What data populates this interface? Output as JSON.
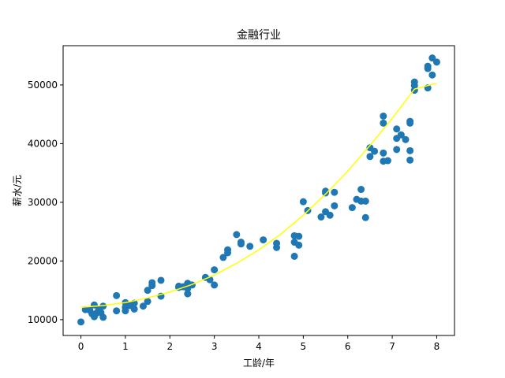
{
  "chart_data": {
    "type": "scatter",
    "title": "金融行业",
    "xlabel": "工龄/年",
    "ylabel": "薪水/元",
    "xlim": [
      -0.4,
      8.4
    ],
    "ylim": [
      7300,
      56700
    ],
    "x_ticks": [
      0,
      1,
      2,
      3,
      4,
      5,
      6,
      7,
      8
    ],
    "y_ticks": [
      10000,
      20000,
      30000,
      40000,
      50000
    ],
    "x_tick_labels": [
      "0",
      "1",
      "2",
      "3",
      "4",
      "5",
      "6",
      "7",
      "8"
    ],
    "y_tick_labels": [
      "10000",
      "20000",
      "30000",
      "40000",
      "50000"
    ],
    "grid": false,
    "scatter_color": "#1f77b4",
    "fit_color": "#ffff00",
    "points": [
      [
        0.0,
        9600
      ],
      [
        0.1,
        11700
      ],
      [
        0.2,
        11600
      ],
      [
        0.25,
        11000
      ],
      [
        0.3,
        12500
      ],
      [
        0.3,
        10500
      ],
      [
        0.35,
        11100
      ],
      [
        0.4,
        11700
      ],
      [
        0.45,
        11200
      ],
      [
        0.5,
        12300
      ],
      [
        0.5,
        10400
      ],
      [
        0.8,
        14100
      ],
      [
        0.8,
        11500
      ],
      [
        1.0,
        12900
      ],
      [
        1.0,
        12100
      ],
      [
        1.0,
        11500
      ],
      [
        1.1,
        12400
      ],
      [
        1.2,
        12800
      ],
      [
        1.2,
        11800
      ],
      [
        1.4,
        12300
      ],
      [
        1.5,
        15000
      ],
      [
        1.5,
        13100
      ],
      [
        1.6,
        16300
      ],
      [
        1.6,
        15800
      ],
      [
        1.8,
        16700
      ],
      [
        1.8,
        14000
      ],
      [
        2.2,
        15700
      ],
      [
        2.2,
        15500
      ],
      [
        2.3,
        15600
      ],
      [
        2.4,
        16200
      ],
      [
        2.4,
        15300
      ],
      [
        2.4,
        14400
      ],
      [
        2.5,
        15900
      ],
      [
        2.8,
        17200
      ],
      [
        2.9,
        16800
      ],
      [
        3.0,
        18500
      ],
      [
        3.0,
        15900
      ],
      [
        3.2,
        20600
      ],
      [
        3.3,
        21900
      ],
      [
        3.3,
        21400
      ],
      [
        3.5,
        24500
      ],
      [
        3.6,
        23200
      ],
      [
        3.6,
        22900
      ],
      [
        3.8,
        22500
      ],
      [
        4.1,
        23600
      ],
      [
        4.4,
        22300
      ],
      [
        4.4,
        23000
      ],
      [
        4.8,
        24300
      ],
      [
        4.8,
        23200
      ],
      [
        4.8,
        20800
      ],
      [
        4.9,
        24200
      ],
      [
        4.9,
        22700
      ],
      [
        5.0,
        30100
      ],
      [
        5.1,
        28600
      ],
      [
        5.4,
        27500
      ],
      [
        5.5,
        31900
      ],
      [
        5.5,
        31600
      ],
      [
        5.5,
        28400
      ],
      [
        5.6,
        27800
      ],
      [
        5.7,
        31700
      ],
      [
        5.7,
        29400
      ],
      [
        6.1,
        29100
      ],
      [
        6.2,
        30500
      ],
      [
        6.3,
        32200
      ],
      [
        6.3,
        30200
      ],
      [
        6.4,
        30200
      ],
      [
        6.4,
        27400
      ],
      [
        6.5,
        39300
      ],
      [
        6.5,
        37800
      ],
      [
        6.6,
        38700
      ],
      [
        6.8,
        44700
      ],
      [
        6.8,
        43500
      ],
      [
        6.8,
        38400
      ],
      [
        6.8,
        37000
      ],
      [
        6.9,
        37100
      ],
      [
        7.1,
        42500
      ],
      [
        7.1,
        40900
      ],
      [
        7.1,
        39000
      ],
      [
        7.2,
        41500
      ],
      [
        7.3,
        40700
      ],
      [
        7.4,
        43800
      ],
      [
        7.4,
        43500
      ],
      [
        7.4,
        38800
      ],
      [
        7.4,
        37200
      ],
      [
        7.5,
        50500
      ],
      [
        7.5,
        49900
      ],
      [
        7.5,
        49100
      ],
      [
        7.8,
        53200
      ],
      [
        7.8,
        52800
      ],
      [
        7.8,
        49500
      ],
      [
        7.9,
        54600
      ],
      [
        7.9,
        51700
      ],
      [
        8.0,
        53900
      ]
    ],
    "fit_line": [
      [
        0.0,
        12100
      ],
      [
        0.5,
        12400
      ],
      [
        1.0,
        12900
      ],
      [
        1.5,
        13700
      ],
      [
        2.0,
        14700
      ],
      [
        2.5,
        16000
      ],
      [
        3.0,
        17600
      ],
      [
        3.5,
        19600
      ],
      [
        4.0,
        21900
      ],
      [
        4.5,
        24600
      ],
      [
        5.0,
        27800
      ],
      [
        5.5,
        31400
      ],
      [
        6.0,
        35300
      ],
      [
        6.5,
        39700
      ],
      [
        7.0,
        44300
      ],
      [
        7.5,
        49300
      ],
      [
        8.0,
        50300
      ]
    ]
  }
}
